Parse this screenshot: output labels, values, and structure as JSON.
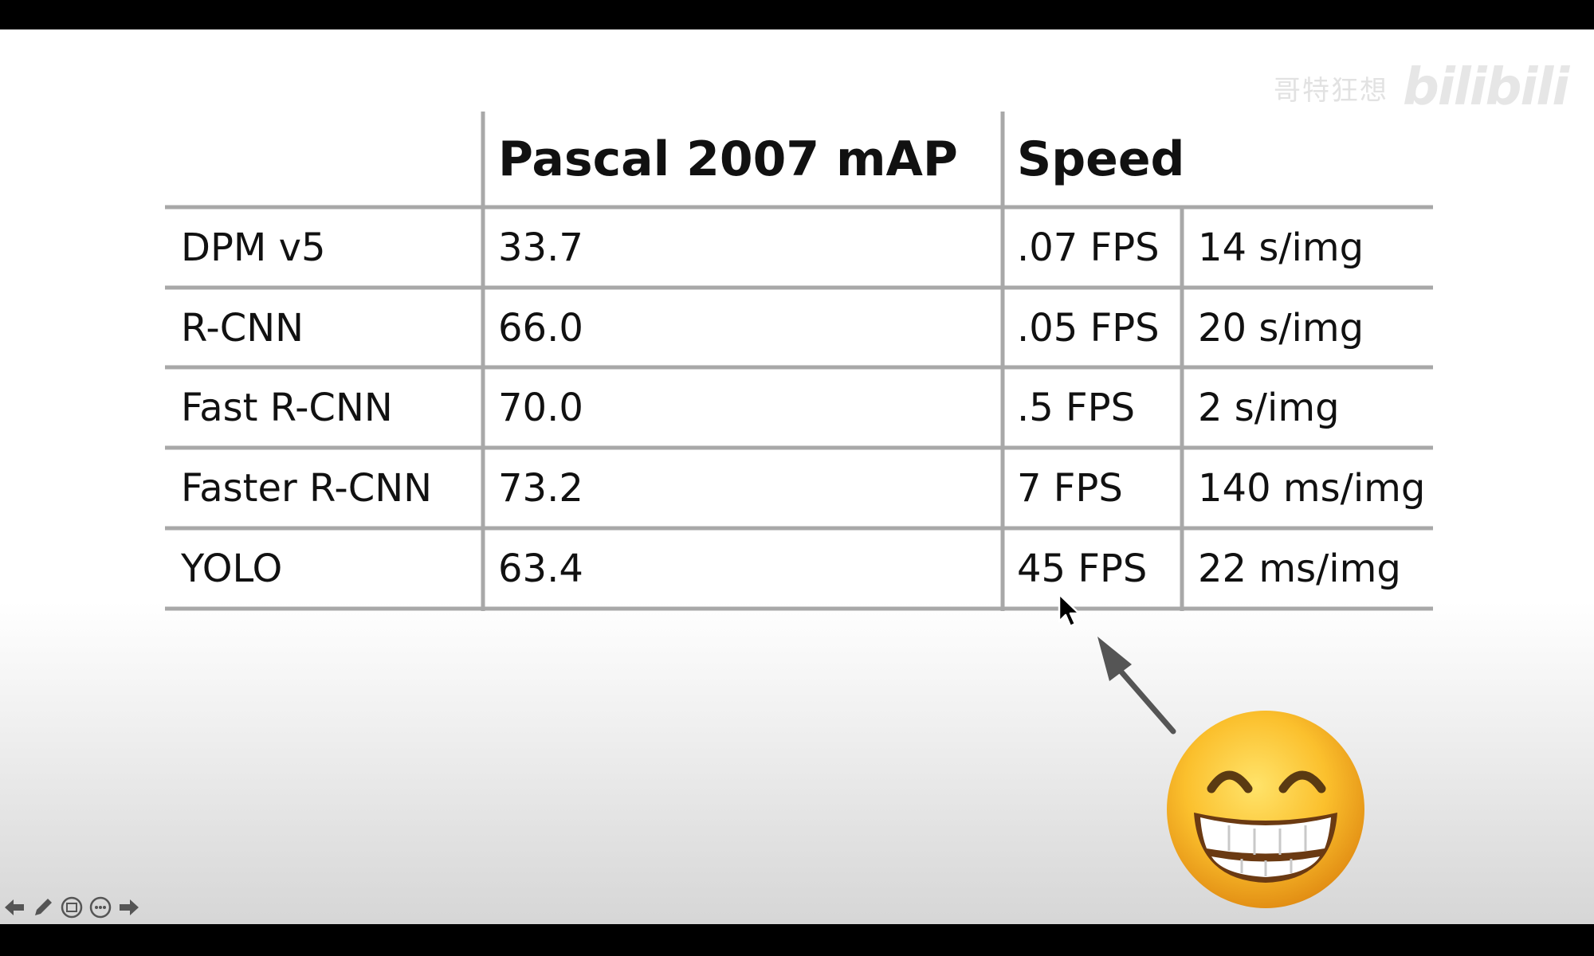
{
  "watermark": {
    "text": "哥特狂想",
    "logo": "bilibili"
  },
  "table": {
    "headers": {
      "map": "Pascal 2007 mAP",
      "speed": "Speed"
    },
    "rows": [
      {
        "model": "DPM v5",
        "map": "33.7",
        "fps": ".07 FPS",
        "latency": "14 s/img"
      },
      {
        "model": "R-CNN",
        "map": "66.0",
        "fps": ".05 FPS",
        "latency": "20 s/img"
      },
      {
        "model": "Fast R-CNN",
        "map": "70.0",
        "fps": ".5 FPS",
        "latency": "2 s/img"
      },
      {
        "model": "Faster R-CNN",
        "map": "73.2",
        "fps": "7 FPS",
        "latency": "140 ms/img"
      },
      {
        "model": "YOLO",
        "map": "63.4",
        "fps": "45 FPS",
        "latency": "22 ms/img"
      }
    ]
  },
  "controls": [
    "prev-icon",
    "pen-icon",
    "slides-icon",
    "more-icon",
    "next-icon"
  ],
  "colors": {
    "grid": "#a8a8a8",
    "text": "#111111",
    "arrow": "#555555"
  }
}
